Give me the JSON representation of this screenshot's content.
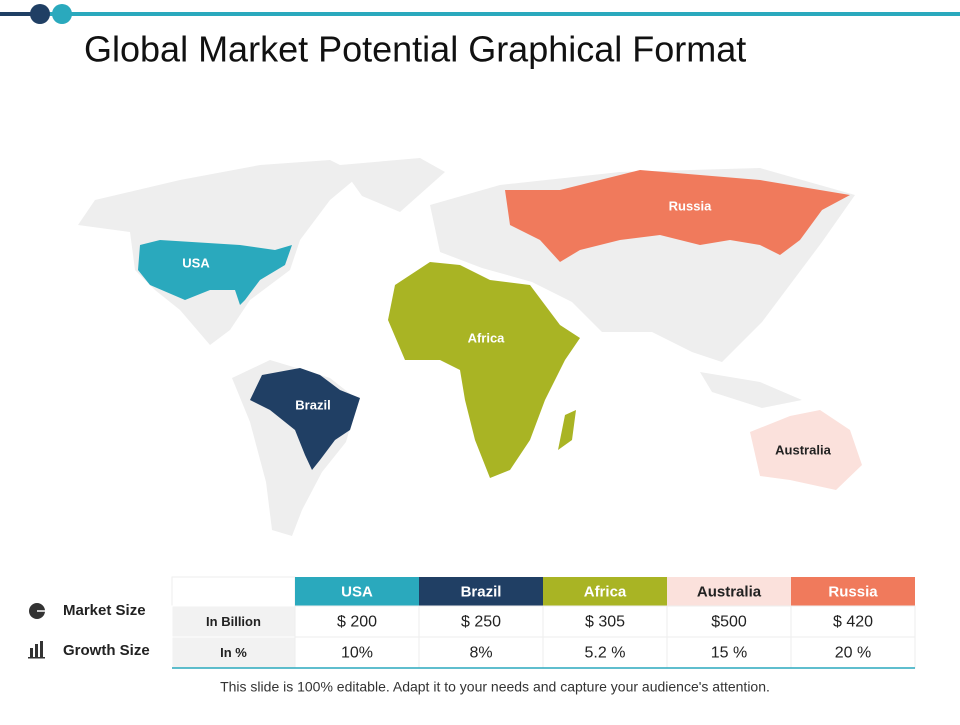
{
  "header": {
    "title": "Global Market Potential Graphical Format"
  },
  "map": {
    "regions": [
      {
        "label": "USA",
        "color": "#2aa9bd"
      },
      {
        "label": "Brazil",
        "color": "#203f64"
      },
      {
        "label": "Africa",
        "color": "#a9b424"
      },
      {
        "label": "Australia",
        "color": "#fbe1dc"
      },
      {
        "label": "Russia",
        "color": "#f07a5c"
      }
    ]
  },
  "legend": {
    "items": [
      "Market Size",
      "Growth Size"
    ]
  },
  "table": {
    "columns": [
      "USA",
      "Brazil",
      "Africa",
      "Australia",
      "Russia"
    ],
    "rows": [
      {
        "label": "In Billion",
        "cells": [
          "$ 200",
          "$ 250",
          "$ 305",
          "$500",
          "$ 420"
        ]
      },
      {
        "label": "In %",
        "cells": [
          "10%",
          "8%",
          "5.2 %",
          "15 %",
          "20 %"
        ]
      }
    ]
  },
  "footer": "This slide is 100% editable. Adapt it to your needs and capture your audience's attention."
}
